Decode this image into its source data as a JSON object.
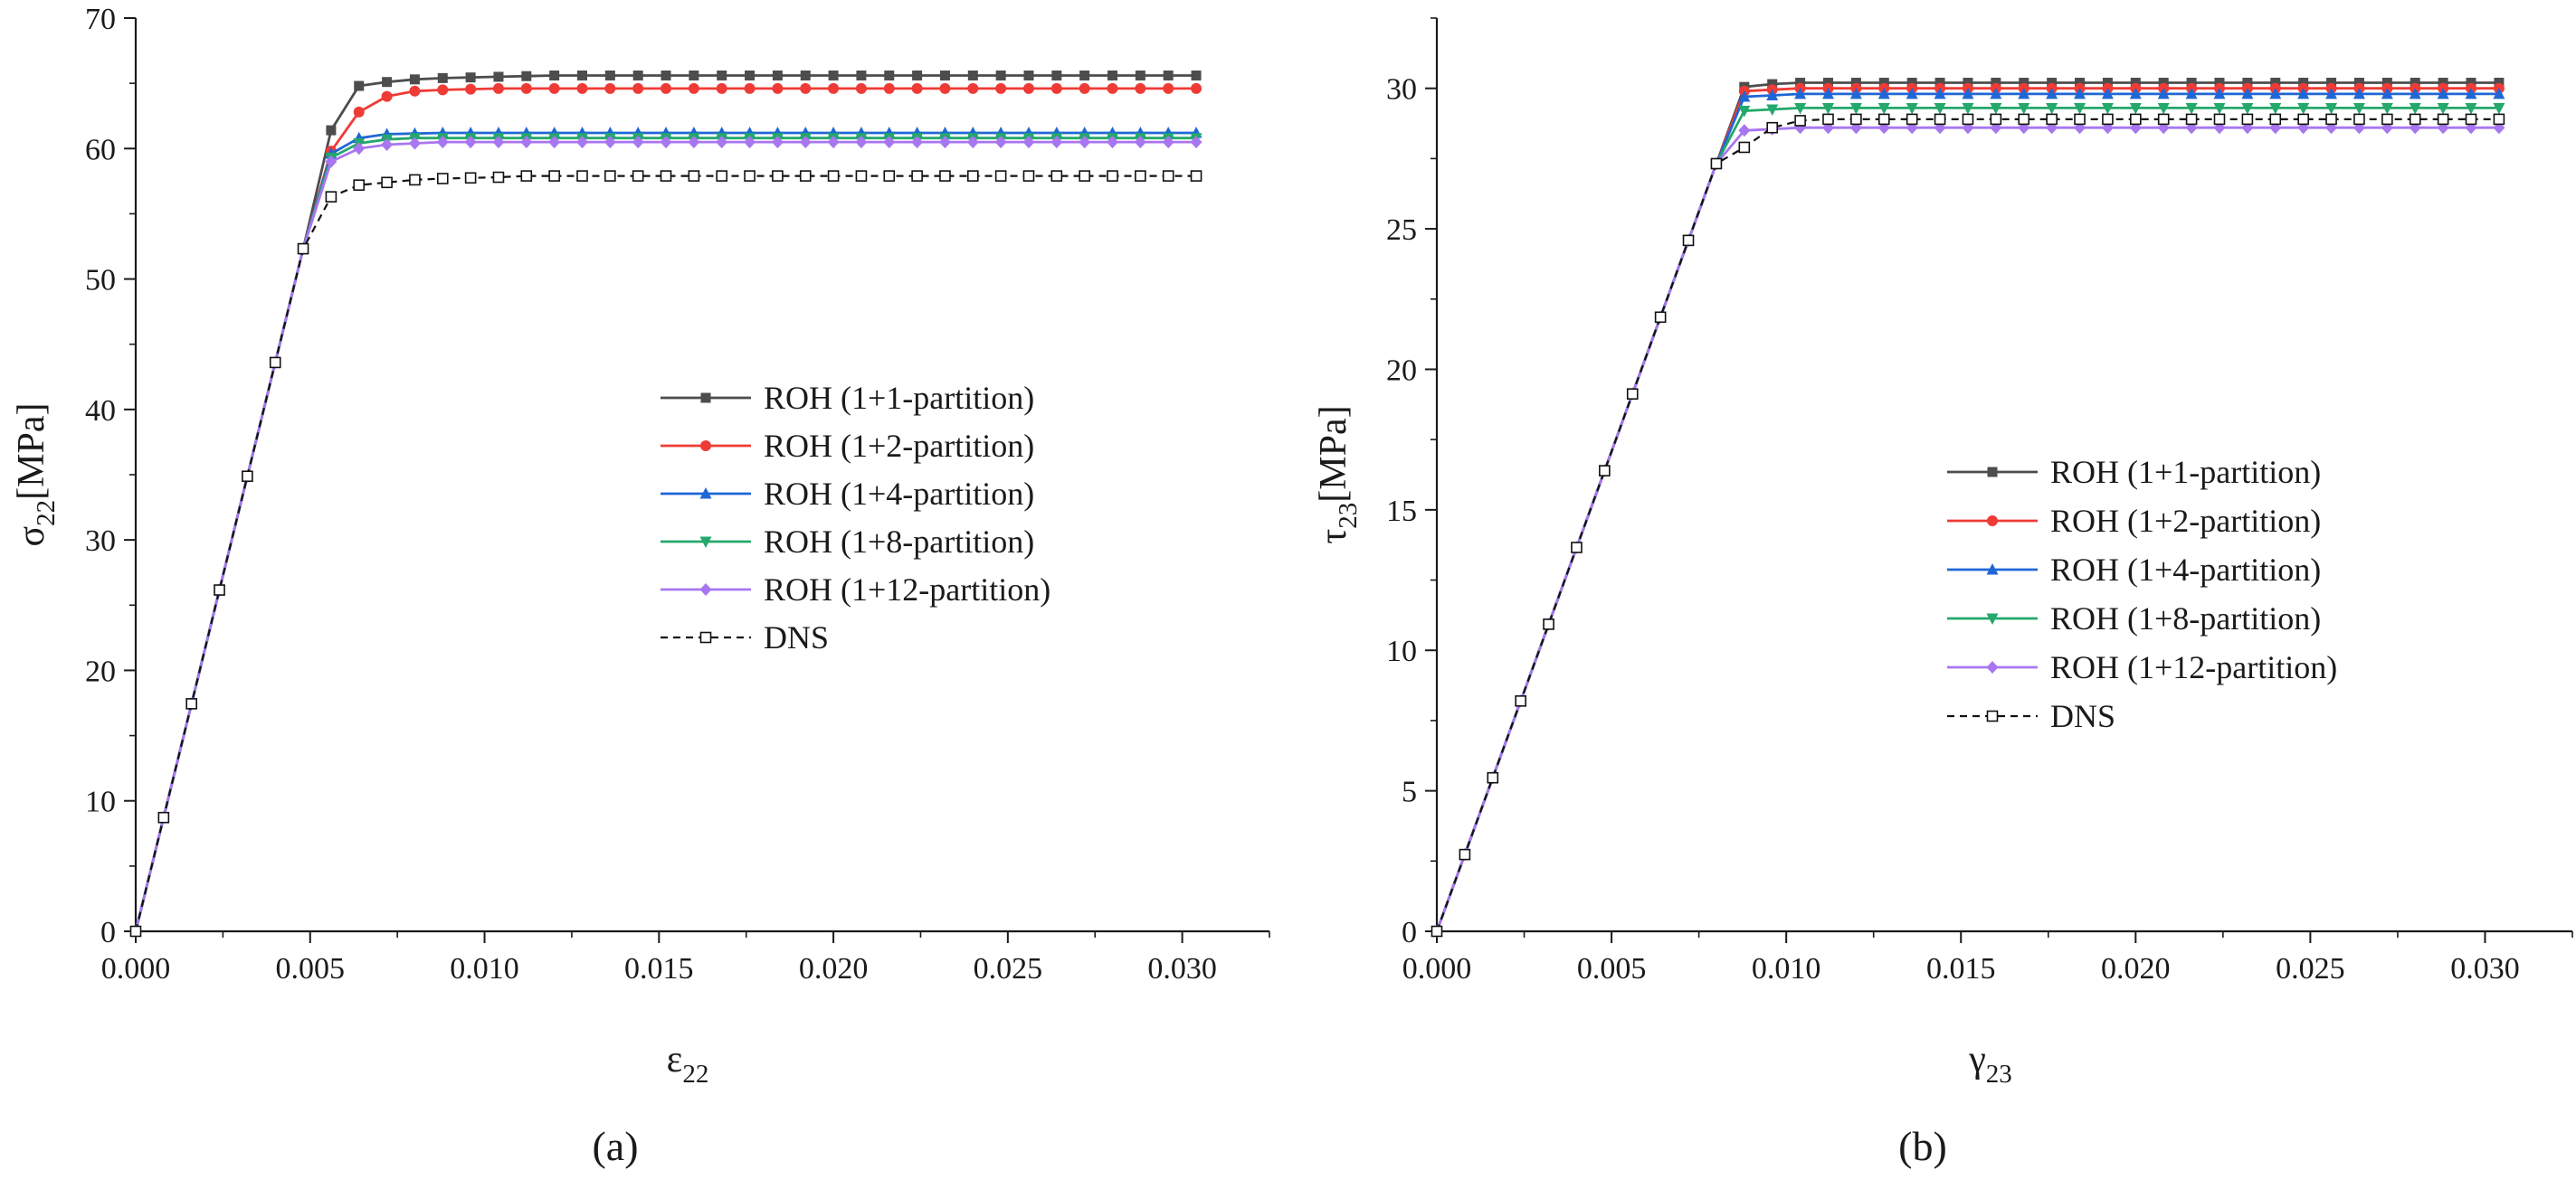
{
  "figure": {
    "panels": [
      "(a)",
      "(b)"
    ]
  },
  "series_styles": [
    {
      "name": "ROH (1+1-partition)",
      "color": "#4d4d4d",
      "marker": "square",
      "dash": false
    },
    {
      "name": "ROH (1+2-partition)",
      "color": "#ef3b36",
      "marker": "circle",
      "dash": false
    },
    {
      "name": "ROH (1+4-partition)",
      "color": "#1f67d6",
      "marker": "triangle-up",
      "dash": false
    },
    {
      "name": "ROH (1+8-partition)",
      "color": "#24a86b",
      "marker": "triangle-down",
      "dash": false
    },
    {
      "name": "ROH (1+12-partition)",
      "color": "#a876f0",
      "marker": "diamond",
      "dash": false
    },
    {
      "name": "DNS",
      "color": "#111111",
      "marker": "open-square",
      "dash": true
    }
  ],
  "chart_data": [
    {
      "type": "line",
      "panel_label": "(a)",
      "xlabel": "ε",
      "xlabel_sub": "22",
      "ylabel": "σ",
      "ylabel_sub": "22",
      "ylabel_unit": "[MPa]",
      "xlim": [
        0,
        0.0325
      ],
      "ylim": [
        0,
        70
      ],
      "xticks": [
        0.0,
        0.005,
        0.01,
        0.015,
        0.02,
        0.025,
        0.03
      ],
      "xtick_labels": [
        "0.000",
        "0.005",
        "0.010",
        "0.015",
        "0.020",
        "0.025",
        "0.030"
      ],
      "yticks": [
        0,
        10,
        20,
        30,
        40,
        50,
        60,
        70
      ],
      "ytick_labels": [
        "0",
        "10",
        "20",
        "30",
        "40",
        "50",
        "60",
        "70"
      ],
      "legend_position": "center-right",
      "linear": {
        "slope": 10900,
        "x_end": 0.0048,
        "y_end": 52.5
      },
      "series": [
        {
          "name": "ROH (1+1-partition)",
          "plateau": 65.6,
          "transition": [
            [
              0.0056,
              61.4
            ],
            [
              0.0064,
              64.8
            ],
            [
              0.0072,
              65.1
            ],
            [
              0.008,
              65.3
            ],
            [
              0.0088,
              65.4
            ],
            [
              0.0096,
              65.45
            ],
            [
              0.0104,
              65.5
            ],
            [
              0.0112,
              65.55
            ]
          ]
        },
        {
          "name": "ROH (1+2-partition)",
          "plateau": 64.6,
          "transition": [
            [
              0.0056,
              59.8
            ],
            [
              0.0064,
              62.8
            ],
            [
              0.0072,
              64.0
            ],
            [
              0.008,
              64.4
            ],
            [
              0.0088,
              64.5
            ],
            [
              0.0096,
              64.55
            ]
          ]
        },
        {
          "name": "ROH (1+4-partition)",
          "plateau": 61.2,
          "transition": [
            [
              0.0056,
              59.6
            ],
            [
              0.0064,
              60.8
            ],
            [
              0.0072,
              61.1
            ],
            [
              0.008,
              61.15
            ]
          ]
        },
        {
          "name": "ROH (1+8-partition)",
          "plateau": 60.8,
          "transition": [
            [
              0.0056,
              59.3
            ],
            [
              0.0064,
              60.4
            ],
            [
              0.0072,
              60.7
            ]
          ]
        },
        {
          "name": "ROH (1+12-partition)",
          "plateau": 60.5,
          "transition": [
            [
              0.0056,
              59.0
            ],
            [
              0.0064,
              60.0
            ],
            [
              0.0072,
              60.3
            ],
            [
              0.008,
              60.4
            ]
          ]
        },
        {
          "name": "DNS",
          "plateau": 57.9,
          "transition": [
            [
              0.0056,
              56.3
            ],
            [
              0.0064,
              57.2
            ],
            [
              0.0072,
              57.4
            ],
            [
              0.008,
              57.6
            ],
            [
              0.0088,
              57.7
            ],
            [
              0.0096,
              57.75
            ],
            [
              0.0104,
              57.8
            ]
          ]
        }
      ]
    },
    {
      "type": "line",
      "panel_label": "(b)",
      "xlabel": "γ",
      "xlabel_sub": "23",
      "ylabel": "τ",
      "ylabel_sub": "23",
      "ylabel_unit": "[MPa]",
      "xlim": [
        0,
        0.0325
      ],
      "ylim": [
        0,
        32.5
      ],
      "xticks": [
        0.0,
        0.005,
        0.01,
        0.015,
        0.02,
        0.025,
        0.03
      ],
      "xtick_labels": [
        "0.000",
        "0.005",
        "0.010",
        "0.015",
        "0.020",
        "0.025",
        "0.030"
      ],
      "yticks": [
        0,
        5,
        10,
        15,
        20,
        25,
        30
      ],
      "ytick_labels": [
        "0",
        "5",
        "10",
        "15",
        "20",
        "25",
        "30"
      ],
      "legend_position": "center-right",
      "linear": {
        "slope": 3415,
        "x_end": 0.008,
        "y_end": 27.32
      },
      "series": [
        {
          "name": "ROH (1+1-partition)",
          "plateau": 30.2,
          "transition": [
            [
              0.0088,
              30.05
            ],
            [
              0.0096,
              30.15
            ]
          ]
        },
        {
          "name": "ROH (1+2-partition)",
          "plateau": 30.0,
          "transition": [
            [
              0.0088,
              29.9
            ],
            [
              0.0096,
              29.95
            ]
          ]
        },
        {
          "name": "ROH (1+4-partition)",
          "plateau": 29.8,
          "transition": [
            [
              0.0088,
              29.7
            ],
            [
              0.0096,
              29.75
            ]
          ]
        },
        {
          "name": "ROH (1+8-partition)",
          "plateau": 29.3,
          "transition": [
            [
              0.0088,
              29.2
            ],
            [
              0.0096,
              29.25
            ]
          ]
        },
        {
          "name": "ROH (1+12-partition)",
          "plateau": 28.6,
          "transition": [
            [
              0.0088,
              28.5
            ],
            [
              0.0096,
              28.55
            ]
          ]
        },
        {
          "name": "DNS",
          "plateau": 28.9,
          "transition": [
            [
              0.0088,
              27.9
            ],
            [
              0.0096,
              28.6
            ],
            [
              0.0104,
              28.85
            ]
          ]
        }
      ]
    }
  ]
}
